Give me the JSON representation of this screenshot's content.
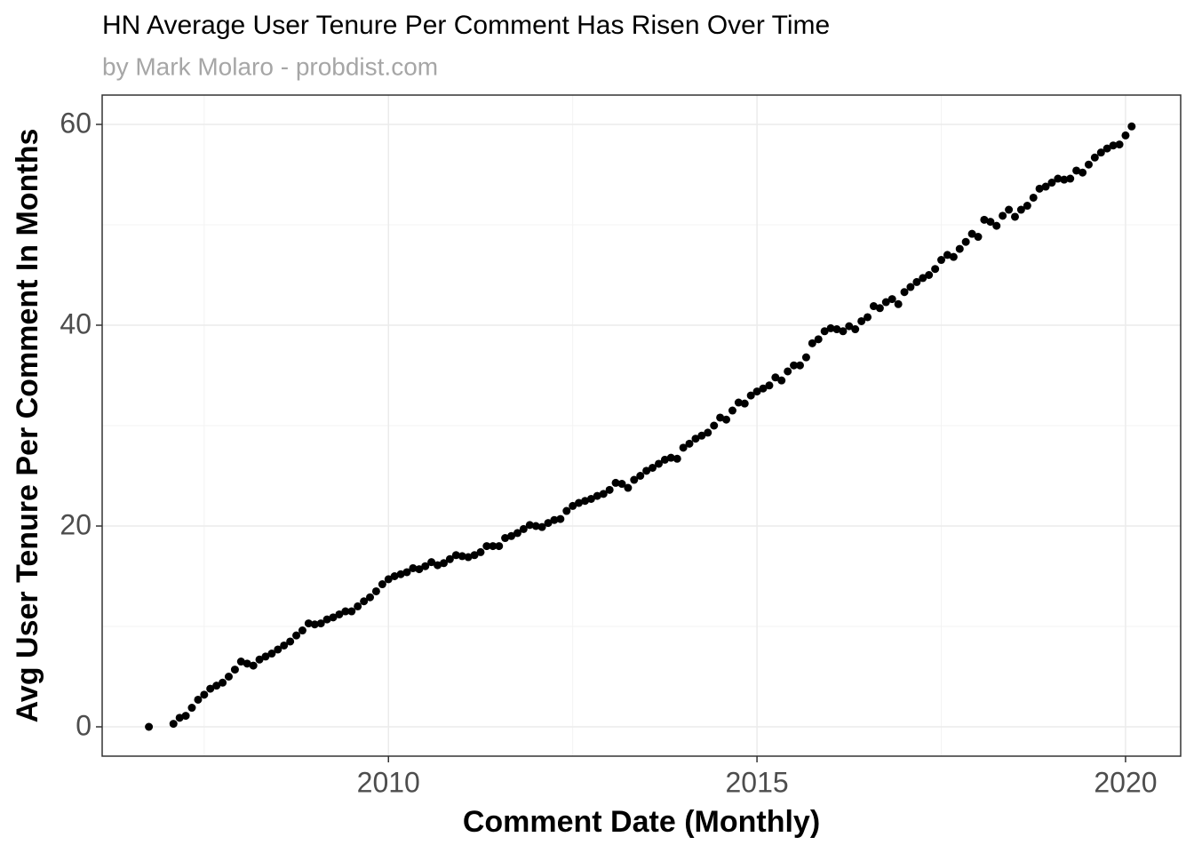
{
  "chart_data": {
    "type": "scatter",
    "title": "HN Average User Tenure Per Comment Has Risen Over Time",
    "subtitle": "by Mark Molaro - probdist.com",
    "x_label": "Comment Date (Monthly)",
    "y_label": "Avg User Tenure Per Comment In Months",
    "color": "#000000",
    "grid": true,
    "xlim": [
      2006.116,
      2020.748
    ],
    "ylim": [
      -2.92,
      62.92
    ],
    "xticks": [
      2010,
      2015,
      2020
    ],
    "yticks": [
      0,
      20,
      40,
      60
    ],
    "series": [
      {
        "name": "tenure",
        "x": [
          2006.75,
          2007.083,
          2007.167,
          2007.25,
          2007.333,
          2007.417,
          2007.5,
          2007.583,
          2007.667,
          2007.75,
          2007.833,
          2007.917,
          2008.0,
          2008.083,
          2008.167,
          2008.25,
          2008.333,
          2008.417,
          2008.5,
          2008.583,
          2008.667,
          2008.75,
          2008.833,
          2008.917,
          2009.0,
          2009.083,
          2009.167,
          2009.25,
          2009.333,
          2009.417,
          2009.5,
          2009.583,
          2009.667,
          2009.75,
          2009.833,
          2009.917,
          2010.0,
          2010.083,
          2010.167,
          2010.25,
          2010.333,
          2010.417,
          2010.5,
          2010.583,
          2010.667,
          2010.75,
          2010.833,
          2010.917,
          2011.0,
          2011.083,
          2011.167,
          2011.25,
          2011.333,
          2011.417,
          2011.5,
          2011.583,
          2011.667,
          2011.75,
          2011.833,
          2011.917,
          2012.0,
          2012.083,
          2012.167,
          2012.25,
          2012.333,
          2012.417,
          2012.5,
          2012.583,
          2012.667,
          2012.75,
          2012.833,
          2012.917,
          2013.0,
          2013.083,
          2013.167,
          2013.25,
          2013.333,
          2013.417,
          2013.5,
          2013.583,
          2013.667,
          2013.75,
          2013.833,
          2013.917,
          2014.0,
          2014.083,
          2014.167,
          2014.25,
          2014.333,
          2014.417,
          2014.5,
          2014.583,
          2014.667,
          2014.75,
          2014.833,
          2014.917,
          2015.0,
          2015.083,
          2015.167,
          2015.25,
          2015.333,
          2015.417,
          2015.5,
          2015.583,
          2015.667,
          2015.75,
          2015.833,
          2015.917,
          2016.0,
          2016.083,
          2016.167,
          2016.25,
          2016.333,
          2016.417,
          2016.5,
          2016.583,
          2016.667,
          2016.75,
          2016.833,
          2016.917,
          2017.0,
          2017.083,
          2017.167,
          2017.25,
          2017.333,
          2017.417,
          2017.5,
          2017.583,
          2017.667,
          2017.75,
          2017.833,
          2017.917,
          2018.0,
          2018.083,
          2018.167,
          2018.25,
          2018.333,
          2018.417,
          2018.5,
          2018.583,
          2018.667,
          2018.75,
          2018.833,
          2018.917,
          2019.0,
          2019.083,
          2019.167,
          2019.25,
          2019.333,
          2019.417,
          2019.5,
          2019.583,
          2019.667,
          2019.75,
          2019.833,
          2019.917,
          2020.0,
          2020.083
        ],
        "values": [
          0,
          0.3,
          0.9,
          1.1,
          1.9,
          2.7,
          3.2,
          3.8,
          4.1,
          4.4,
          5.0,
          5.7,
          6.5,
          6.3,
          6.1,
          6.7,
          7.0,
          7.3,
          7.7,
          8.1,
          8.5,
          9.1,
          9.6,
          10.3,
          10.2,
          10.3,
          10.7,
          10.9,
          11.2,
          11.5,
          11.5,
          12.0,
          12.5,
          12.9,
          13.5,
          14.2,
          14.7,
          15.0,
          15.2,
          15.4,
          15.8,
          15.7,
          16.0,
          16.4,
          16.1,
          16.3,
          16.7,
          17.1,
          17.0,
          16.9,
          17.1,
          17.4,
          18.0,
          18.0,
          18.0,
          18.8,
          19.0,
          19.3,
          19.7,
          20.1,
          20.0,
          19.9,
          20.3,
          20.6,
          20.7,
          21.5,
          22.0,
          22.3,
          22.5,
          22.7,
          23.0,
          23.2,
          23.6,
          24.3,
          24.2,
          23.8,
          24.6,
          25.0,
          25.5,
          25.8,
          26.2,
          26.6,
          26.8,
          26.7,
          27.8,
          28.2,
          28.7,
          29.0,
          29.3,
          30.0,
          30.8,
          30.6,
          31.5,
          32.3,
          32.2,
          33.0,
          33.4,
          33.7,
          34.0,
          34.8,
          34.5,
          35.4,
          36.0,
          36.0,
          36.8,
          38.2,
          38.6,
          39.4,
          39.7,
          39.6,
          39.4,
          39.9,
          39.6,
          40.4,
          40.8,
          41.9,
          41.7,
          42.3,
          42.6,
          42.1,
          43.3,
          43.8,
          44.3,
          44.7,
          45.0,
          45.6,
          46.5,
          47.0,
          46.8,
          47.6,
          48.3,
          49.1,
          48.8,
          50.5,
          50.3,
          49.9,
          50.9,
          51.5,
          50.8,
          51.5,
          51.9,
          52.7,
          53.6,
          53.8,
          54.2,
          54.6,
          54.5,
          54.6,
          55.4,
          55.2,
          56.0,
          56.7,
          57.2,
          57.6,
          57.9,
          58.0,
          58.9,
          59.8
        ]
      }
    ]
  }
}
